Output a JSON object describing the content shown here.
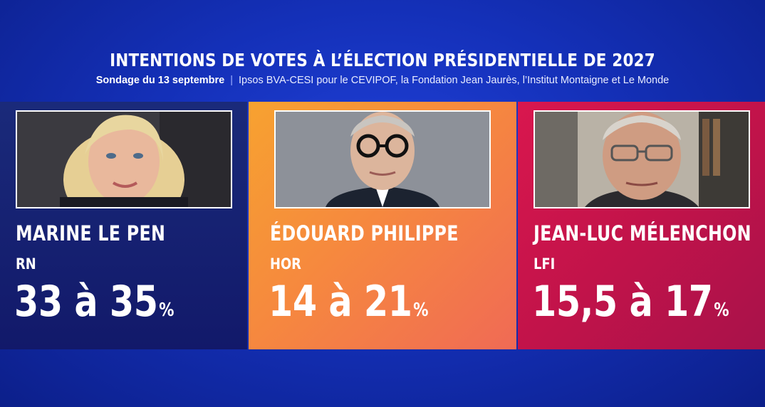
{
  "header": {
    "title": "INTENTIONS DE VOTES À L’ÉLECTION PRÉSIDENTIELLE DE 2027",
    "survey_date": "Sondage du 13 septembre",
    "separator": "|",
    "source": "Ipsos BVA-CESI pour le CEVIPOF, la Fondation Jean Jaurès, l’Institut Montaigne et Le Monde"
  },
  "candidates": [
    {
      "name": "MARINE LE PEN",
      "party": "RN",
      "range": "33 à 35",
      "unit": "%",
      "color": "#12196a"
    },
    {
      "name": "ÉDOUARD PHILIPPE",
      "party": "HOR",
      "range": "14 à 21",
      "unit": "%",
      "color": "#f6893e"
    },
    {
      "name": "JEAN-LUC MÉLENCHON",
      "party": "LFI",
      "range": "15,5 à 17",
      "unit": "%",
      "color": "#c2134a"
    }
  ]
}
